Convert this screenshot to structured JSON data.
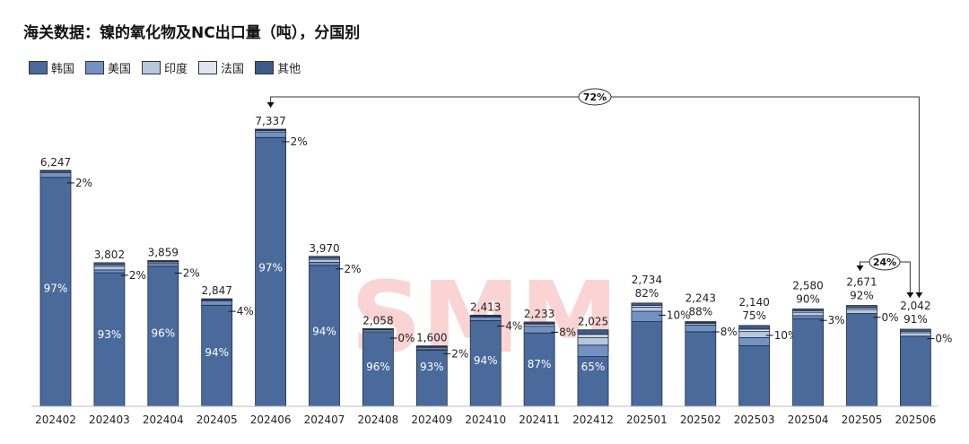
{
  "title": "海关数据：镍的氧化物及NC出口量（吨），分国别",
  "watermark": "SMM",
  "chart_data": {
    "type": "bar",
    "stacked": true,
    "title": "海关数据：镍的氧化物及NC出口量（吨），分国别",
    "legend_position": "top-left",
    "grid": false,
    "ylim": [
      0,
      7600
    ],
    "legend": [
      {
        "name": "韩国",
        "color": "#4a6a9c"
      },
      {
        "name": "美国",
        "color": "#7391c3"
      },
      {
        "name": "印度",
        "color": "#b8c7e0"
      },
      {
        "name": "法国",
        "color": "#dfe6f0"
      },
      {
        "name": "其他",
        "color": "#3e5b88"
      }
    ],
    "categories": [
      "202402",
      "202403",
      "202404",
      "202405",
      "202406",
      "202407",
      "202408",
      "202409",
      "202410",
      "202411",
      "202412",
      "202501",
      "202502",
      "202503",
      "202504",
      "202505",
      "202506"
    ],
    "totals": [
      6247,
      3802,
      3859,
      2847,
      7337,
      3970,
      2058,
      1600,
      2413,
      2233,
      2025,
      2734,
      2243,
      2140,
      2580,
      2671,
      2042
    ],
    "korea_pct_labels": [
      "97%",
      "93%",
      "96%",
      "94%",
      "97%",
      "94%",
      "96%",
      "93%",
      "94%",
      "87%",
      "65%",
      "82%",
      "88%",
      "75%",
      "90%",
      "92%",
      "91%"
    ],
    "side_pct_labels": [
      "2%",
      "2%",
      "2%",
      "4%",
      "2%",
      "2%",
      "0%",
      "2%",
      "4%",
      "8%",
      "",
      "10%",
      "8%",
      "10%",
      "3%",
      "0%",
      "0%"
    ],
    "korea_pct": [
      97,
      93,
      96,
      94,
      97,
      94,
      96,
      93,
      94,
      87,
      65,
      82,
      88,
      75,
      90,
      92,
      91
    ],
    "us_pct": [
      2,
      2,
      2,
      4,
      2,
      2,
      0,
      2,
      4,
      8,
      15,
      10,
      8,
      10,
      3,
      0,
      0
    ],
    "annotations": [
      {
        "label": "72%",
        "from": "202406",
        "to": "202506"
      },
      {
        "label": "24%",
        "from": "202505",
        "to": "202506"
      }
    ]
  }
}
